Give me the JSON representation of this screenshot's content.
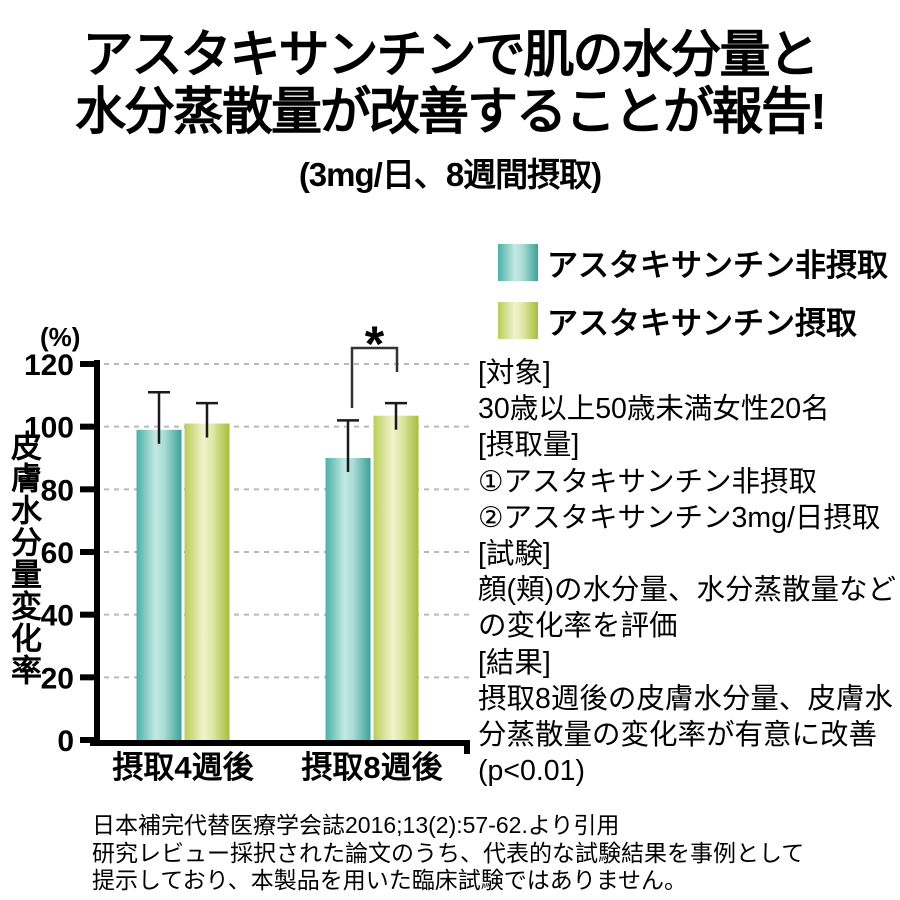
{
  "title": {
    "line1": "アスタキサンチンで肌の水分量と",
    "line2": "水分蒸散量が改善することが報告!",
    "subtitle": "(3mg/日、8週間摂取)"
  },
  "chart_data": {
    "type": "bar",
    "categories": [
      "摂取4週後",
      "摂取8週後"
    ],
    "series": [
      {
        "name": "アスタキサンチン非摂取",
        "values": [
          99,
          90
        ],
        "error_plus": [
          12,
          12
        ],
        "gradient": [
          "#4ab1a8",
          "#c3e8e2",
          "#a9dcd5",
          "#3aa197"
        ]
      },
      {
        "name": "アスタキサンチン摂取",
        "values": [
          101,
          103.5
        ],
        "error_plus": [
          6.5,
          4
        ],
        "gradient": [
          "#b9cd57",
          "#f0f3cd",
          "#dfe9a8",
          "#a7bd3b"
        ]
      }
    ],
    "ylabel": "皮膚水分量変化率",
    "y_unit": "(%)",
    "ylim": [
      0,
      120
    ],
    "yticks": [
      0,
      20,
      40,
      60,
      80,
      100,
      120
    ],
    "grid": "horizontal-dashed",
    "legend_position": "top-right",
    "significance": {
      "category": "摂取8週後",
      "marker": "*"
    }
  },
  "description": {
    "text": "[対象]\n30歳以上50歳未満女性20名\n[摂取量]\n①アスタキサンチン非摂取\n②アスタキサンチン3mg/日摂取\n[試験]\n顔(頬)の水分量、水分蒸散量など\nの変化率を評価\n[結果]\n摂取8週後の皮膚水分量、皮膚水\n分蒸散量の変化率が有意に改善\n(p<0.01)"
  },
  "footnote": {
    "text": "日本補完代替医療学会誌2016;13(2):57-62.より引用\n研究レビュー採択された論文のうち、代表的な試験結果を事例として\n提示しており、本製品を用いた臨床試験ではありません。"
  }
}
